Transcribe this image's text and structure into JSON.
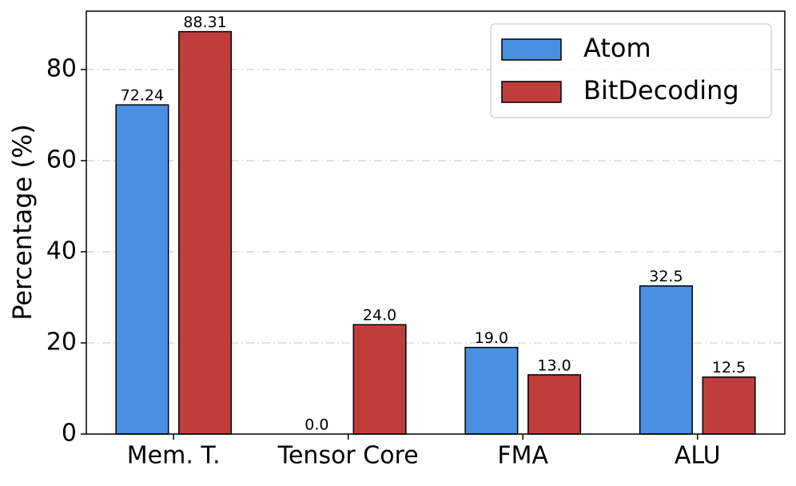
{
  "chart_data": {
    "type": "bar",
    "y_label": "Percentage (%)",
    "categories": [
      "Mem. T.",
      "Tensor Core",
      "FMA",
      "ALU"
    ],
    "series": [
      {
        "name": "Atom",
        "color": "#4a90e2",
        "values": [
          72.24,
          0,
          19,
          32.5
        ],
        "value_labels": [
          "72.24",
          "0.0",
          "19.0",
          "32.5"
        ]
      },
      {
        "name": "BitDecoding",
        "color": "#c03d3e",
        "values": [
          88.31,
          24,
          13,
          12.5
        ],
        "value_labels": [
          "88.31",
          "24.0",
          "13.0",
          "12.5"
        ]
      }
    ],
    "ylim": [
      0,
      92.8
    ],
    "yticks": [
      0,
      20,
      40,
      60,
      80
    ],
    "grid": true,
    "legend": "upper right"
  }
}
